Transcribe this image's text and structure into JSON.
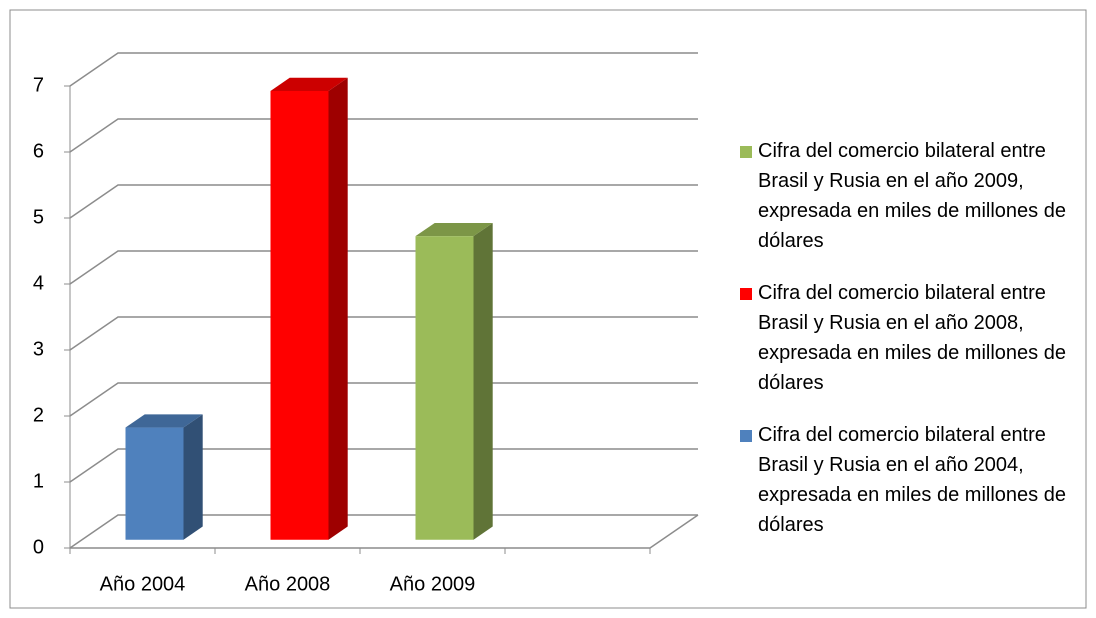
{
  "chart_data": {
    "type": "bar",
    "categories": [
      "Año 2004",
      "Año 2008",
      "Año 2009",
      null
    ],
    "series": [
      {
        "name": "Cifra del comercio bilateral entre Brasil y Rusia en el año 2004, expresada en miles de millones de dólares",
        "color": "#4f81bd",
        "values": [
          1.7,
          null,
          null,
          null
        ]
      },
      {
        "name": "Cifra del comercio bilateral entre Brasil y Rusia en el año 2008, expresada en miles de millones de dólares",
        "color": "#ff0000",
        "values": [
          null,
          6.8,
          null,
          null
        ]
      },
      {
        "name": "Cifra del comercio bilateral entre Brasil y Rusia en el año 2009, expresada en miles de millones de dólares",
        "color": "#9bbb59",
        "values": [
          null,
          null,
          4.6,
          null
        ]
      }
    ],
    "ylim": [
      0,
      7
    ],
    "yticks": [
      0,
      1,
      2,
      3,
      4,
      5,
      6,
      7
    ],
    "grid": true,
    "legend": "right"
  }
}
